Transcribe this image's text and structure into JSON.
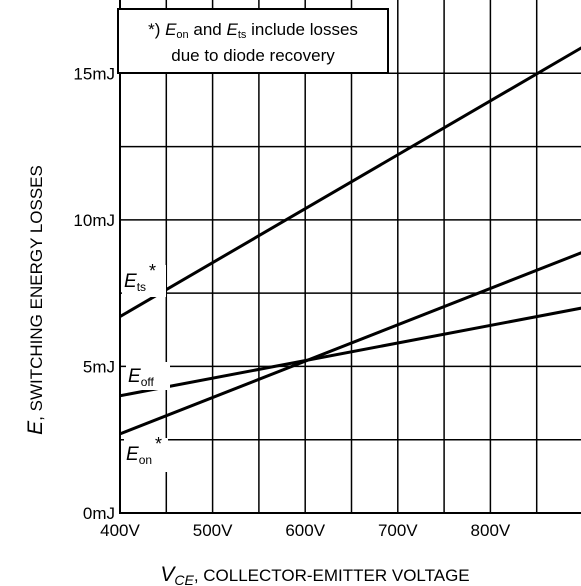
{
  "chart_data": {
    "type": "line",
    "title": "",
    "xlabel": {
      "symbol": "V",
      "subscript": "CE",
      "text": ", COLLECTOR-EMITTER VOLTAGE"
    },
    "ylabel": {
      "symbol": "E",
      "text": ", SWITCHING ENERGY LOSSES"
    },
    "xlim": [
      400,
      900
    ],
    "ylim": [
      0,
      17.5
    ],
    "xticks": [
      400,
      500,
      600,
      700,
      800
    ],
    "xtick_labels": [
      "400V",
      "500V",
      "600V",
      "700V",
      "800V"
    ],
    "yticks": [
      0,
      5,
      10,
      15
    ],
    "ytick_labels": [
      "0mJ",
      "5mJ",
      "10mJ",
      "15mJ"
    ],
    "grid": true,
    "series": [
      {
        "name": "Ets",
        "label": {
          "sym": "E",
          "sub": "ts",
          "sup": "*"
        },
        "x": [
          400,
          900
        ],
        "y": [
          6.7,
          15.9
        ]
      },
      {
        "name": "Eoff",
        "label": {
          "sym": "E",
          "sub": "off",
          "sup": ""
        },
        "x": [
          400,
          900
        ],
        "y": [
          4.0,
          7.0
        ]
      },
      {
        "name": "Eon",
        "label": {
          "sym": "E",
          "sub": "on",
          "sup": "*"
        },
        "x": [
          400,
          900
        ],
        "y": [
          2.7,
          8.9
        ]
      }
    ],
    "annotation": {
      "line1": {
        "prefix": "*) ",
        "e1": "E",
        "s1": "on",
        "mid": " and ",
        "e2": "E",
        "s2": "ts",
        "suffix": " include losses"
      },
      "line2": "due to diode recovery"
    }
  }
}
